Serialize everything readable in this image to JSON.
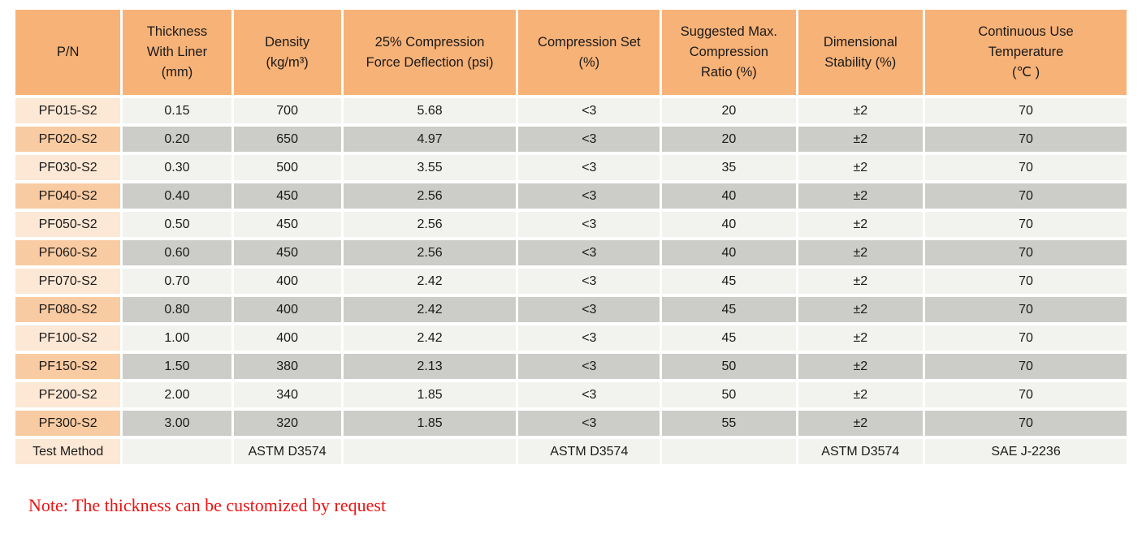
{
  "table": {
    "columns": [
      {
        "id": "pn",
        "label": "P/N"
      },
      {
        "id": "thickness",
        "label": "Thickness\nWith Liner\n(mm)"
      },
      {
        "id": "density",
        "label": "Density\n(kg/m³)"
      },
      {
        "id": "cfd",
        "label": "25% Compression\nForce Deflection (psi)"
      },
      {
        "id": "compression_set",
        "label": "Compression Set\n(%)"
      },
      {
        "id": "max_compression_ratio",
        "label": "Suggested Max.\nCompression\nRatio (%)"
      },
      {
        "id": "dimensional_stability",
        "label": "Dimensional\nStability (%)"
      },
      {
        "id": "continuous_use_temp",
        "label": "Continuous Use\nTemperature\n(℃ )"
      }
    ],
    "rows": [
      {
        "pn": "PF015-S2",
        "cells": [
          "0.15",
          "700",
          "5.68",
          "<3",
          "20",
          "±2",
          "70"
        ]
      },
      {
        "pn": "PF020-S2",
        "cells": [
          "0.20",
          "650",
          "4.97",
          "<3",
          "20",
          "±2",
          "70"
        ]
      },
      {
        "pn": "PF030-S2",
        "cells": [
          "0.30",
          "500",
          "3.55",
          "<3",
          "35",
          "±2",
          "70"
        ]
      },
      {
        "pn": "PF040-S2",
        "cells": [
          "0.40",
          "450",
          "2.56",
          "<3",
          "40",
          "±2",
          "70"
        ]
      },
      {
        "pn": "PF050-S2",
        "cells": [
          "0.50",
          "450",
          "2.56",
          "<3",
          "40",
          "±2",
          "70"
        ]
      },
      {
        "pn": "PF060-S2",
        "cells": [
          "0.60",
          "450",
          "2.56",
          "<3",
          "40",
          "±2",
          "70"
        ]
      },
      {
        "pn": "PF070-S2",
        "cells": [
          "0.70",
          "400",
          "2.42",
          "<3",
          "45",
          "±2",
          "70"
        ]
      },
      {
        "pn": "PF080-S2",
        "cells": [
          "0.80",
          "400",
          "2.42",
          "<3",
          "45",
          "±2",
          "70"
        ]
      },
      {
        "pn": "PF100-S2",
        "cells": [
          "1.00",
          "400",
          "2.42",
          "<3",
          "45",
          "±2",
          "70"
        ]
      },
      {
        "pn": "PF150-S2",
        "cells": [
          "1.50",
          "380",
          "2.13",
          "<3",
          "50",
          "±2",
          "70"
        ]
      },
      {
        "pn": "PF200-S2",
        "cells": [
          "2.00",
          "340",
          "1.85",
          "<3",
          "50",
          "±2",
          "70"
        ]
      },
      {
        "pn": "PF300-S2",
        "cells": [
          "3.00",
          "320",
          "1.85",
          "<3",
          "55",
          "±2",
          "70"
        ]
      }
    ],
    "test_method_row": {
      "pn": "Test Method",
      "cells": [
        "",
        "ASTM D3574",
        "",
        "ASTM D3574",
        "",
        "ASTM D3574",
        "SAE J-2236"
      ]
    }
  },
  "note": "Note: The thickness can be customized by request",
  "colors": {
    "header_orange": "#f7b277",
    "pn_cell_dark": "#f9cba2",
    "pn_cell_light": "#fce8d5",
    "data_cell_dark": "#ccccc8",
    "data_cell_light": "#f2f2ee",
    "note_red": "#f01111",
    "text": "#1a1a1a",
    "page_background": "#ffffff"
  }
}
